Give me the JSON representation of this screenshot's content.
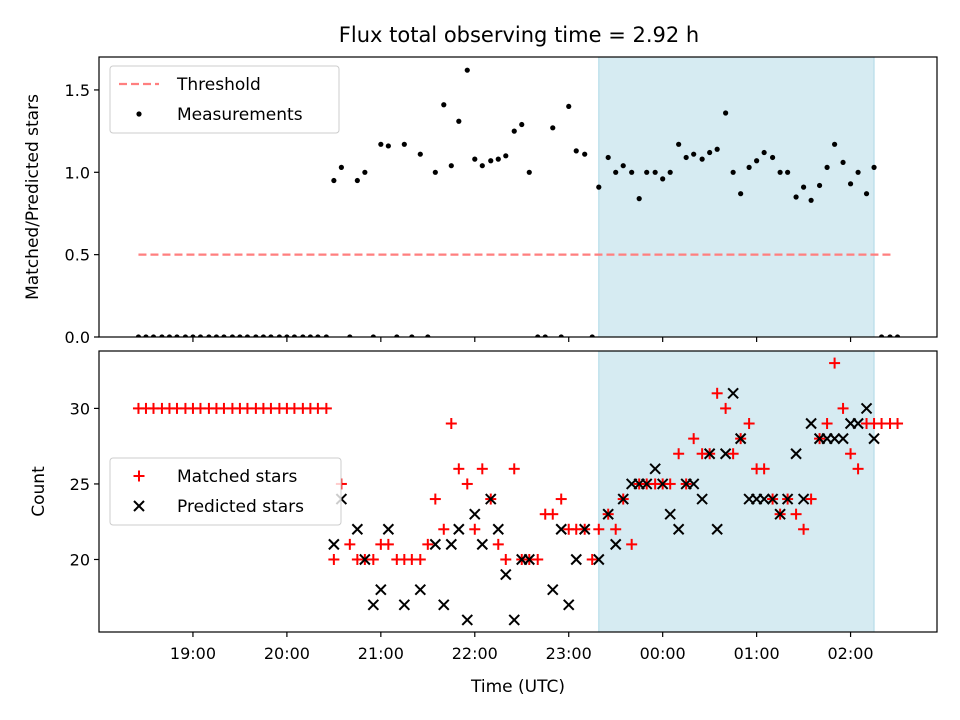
{
  "title": "Flux total observing time = 2.92 h",
  "chart_data": [
    {
      "type": "line+scatter",
      "ylabel": "Matched/Predicted stars",
      "x_units": "hours (UTC, continuing past midnight)",
      "xlim": [
        18.0,
        26.92
      ],
      "ylim": [
        0,
        1.7
      ],
      "yticks": [
        0.0,
        0.5,
        1.0,
        1.5
      ],
      "ytick_labels": [
        "0.0",
        "0.5",
        "1.0",
        "1.5"
      ],
      "observing_window": [
        23.32,
        26.25
      ],
      "legend_position": "upper-left",
      "series": [
        {
          "name": "Threshold",
          "kind": "dashed-line",
          "color": "#ff7f7f",
          "x": [
            18.42,
            26.46
          ],
          "y": [
            0.5,
            0.5
          ]
        },
        {
          "name": "Measurements",
          "kind": "scatter-dots",
          "color": "#000000",
          "x": [
            18.42,
            18.5,
            18.58,
            18.67,
            18.75,
            18.83,
            18.92,
            19.0,
            19.08,
            19.17,
            19.25,
            19.33,
            19.42,
            19.5,
            19.58,
            19.67,
            19.75,
            19.83,
            19.92,
            20.0,
            20.08,
            20.17,
            20.25,
            20.33,
            20.42,
            20.5,
            20.58,
            20.67,
            20.75,
            20.83,
            20.92,
            21.0,
            21.08,
            21.17,
            21.25,
            21.33,
            21.42,
            21.5,
            21.58,
            21.67,
            21.75,
            21.83,
            21.92,
            22.0,
            22.08,
            22.17,
            22.25,
            22.33,
            22.42,
            22.5,
            22.58,
            22.67,
            22.75,
            22.83,
            22.92,
            23.0,
            23.08,
            23.17,
            23.25,
            23.32,
            23.42,
            23.5,
            23.58,
            23.67,
            23.75,
            23.83,
            23.92,
            24.0,
            24.08,
            24.17,
            24.25,
            24.33,
            24.42,
            24.5,
            24.58,
            24.67,
            24.75,
            24.83,
            24.92,
            25.0,
            25.08,
            25.17,
            25.25,
            25.33,
            25.42,
            25.5,
            25.58,
            25.67,
            25.75,
            25.83,
            25.92,
            26.0,
            26.08,
            26.17,
            26.25,
            26.33,
            26.42,
            26.5
          ],
          "y": [
            0,
            0,
            0,
            0,
            0,
            0,
            0,
            0,
            0,
            0,
            0,
            0,
            0,
            0,
            0,
            0,
            0,
            0,
            0,
            0,
            0,
            0,
            0,
            0,
            0,
            0.95,
            1.03,
            0,
            0.95,
            1.0,
            0,
            1.17,
            1.16,
            0,
            1.17,
            0,
            1.11,
            0,
            1.0,
            1.41,
            1.04,
            1.31,
            1.62,
            1.08,
            1.04,
            1.07,
            1.08,
            1.1,
            1.25,
            1.29,
            1.0,
            0,
            0,
            1.27,
            0,
            1.4,
            1.13,
            1.11,
            0,
            0.91,
            1.09,
            1.0,
            1.04,
            1.0,
            0.84,
            1.0,
            1.0,
            0.96,
            1.0,
            1.17,
            1.09,
            1.11,
            1.08,
            1.12,
            1.14,
            1.36,
            1.0,
            0.87,
            1.03,
            1.07,
            1.12,
            1.09,
            1.0,
            1.0,
            0.85,
            0.91,
            0.83,
            0.92,
            1.03,
            1.17,
            1.06,
            0.93,
            1.0,
            0.87,
            1.03,
            0,
            0,
            0
          ]
        }
      ]
    },
    {
      "type": "scatter",
      "xlabel": "Time (UTC)",
      "ylabel": "Count",
      "x_units": "hours (UTC, continuing past midnight)",
      "xlim": [
        18.0,
        26.92
      ],
      "ylim": [
        15.2,
        33.8
      ],
      "yticks": [
        20,
        25,
        30
      ],
      "ytick_labels": [
        "20",
        "25",
        "30"
      ],
      "xticks": [
        19,
        20,
        21,
        22,
        23,
        24,
        25,
        26
      ],
      "xtick_labels": [
        "19:00",
        "20:00",
        "21:00",
        "22:00",
        "23:00",
        "00:00",
        "01:00",
        "02:00"
      ],
      "observing_window": [
        23.32,
        26.25
      ],
      "legend_position": "center-left",
      "series": [
        {
          "name": "Matched stars",
          "marker": "+",
          "color": "#ff0000",
          "x": [
            18.42,
            18.5,
            18.58,
            18.67,
            18.75,
            18.83,
            18.92,
            19.0,
            19.08,
            19.17,
            19.25,
            19.33,
            19.42,
            19.5,
            19.58,
            19.67,
            19.75,
            19.83,
            19.92,
            20.0,
            20.08,
            20.17,
            20.25,
            20.33,
            20.42,
            20.5,
            20.58,
            20.67,
            20.75,
            20.83,
            20.92,
            21.0,
            21.08,
            21.17,
            21.25,
            21.33,
            21.42,
            21.5,
            21.58,
            21.67,
            21.75,
            21.83,
            21.92,
            22.0,
            22.08,
            22.17,
            22.25,
            22.33,
            22.42,
            22.5,
            22.58,
            22.67,
            22.75,
            22.83,
            22.92,
            23.0,
            23.08,
            23.17,
            23.25,
            23.32,
            23.42,
            23.5,
            23.58,
            23.67,
            23.75,
            23.83,
            23.92,
            24.0,
            24.08,
            24.17,
            24.25,
            24.33,
            24.42,
            24.5,
            24.58,
            24.67,
            24.75,
            24.83,
            24.92,
            25.0,
            25.08,
            25.17,
            25.25,
            25.33,
            25.42,
            25.5,
            25.58,
            25.67,
            25.75,
            25.83,
            25.92,
            26.0,
            26.08,
            26.17,
            26.25,
            26.33,
            26.42,
            26.5
          ],
          "y": [
            30,
            30,
            30,
            30,
            30,
            30,
            30,
            30,
            30,
            30,
            30,
            30,
            30,
            30,
            30,
            30,
            30,
            30,
            30,
            30,
            30,
            30,
            30,
            30,
            30,
            20,
            25,
            21,
            20,
            20,
            20,
            21,
            21,
            20,
            20,
            20,
            20,
            21,
            24,
            22,
            29,
            26,
            25,
            22,
            26,
            24,
            21,
            20,
            26,
            20,
            20,
            20,
            23,
            23,
            24,
            22,
            22,
            22,
            20,
            22,
            23,
            22,
            24,
            21,
            25,
            25,
            25,
            25,
            25,
            27,
            25,
            28,
            27,
            27,
            31,
            30,
            27,
            28,
            29,
            26,
            26,
            24,
            23,
            24,
            23,
            22,
            24,
            28,
            29,
            33,
            30,
            27,
            26,
            29,
            29,
            29,
            29,
            29
          ]
        },
        {
          "name": "Predicted stars",
          "marker": "x",
          "color": "#000000",
          "x": [
            20.5,
            20.58,
            20.75,
            20.83,
            20.92,
            21.0,
            21.08,
            21.25,
            21.42,
            21.58,
            21.67,
            21.75,
            21.83,
            21.92,
            22.0,
            22.08,
            22.17,
            22.25,
            22.33,
            22.42,
            22.5,
            22.58,
            22.83,
            22.92,
            23.0,
            23.08,
            23.17,
            23.32,
            23.42,
            23.5,
            23.58,
            23.67,
            23.75,
            23.83,
            23.92,
            24.0,
            24.08,
            24.17,
            24.25,
            24.33,
            24.42,
            24.5,
            24.58,
            24.67,
            24.75,
            24.83,
            24.92,
            25.0,
            25.08,
            25.17,
            25.25,
            25.33,
            25.42,
            25.5,
            25.58,
            25.67,
            25.75,
            25.83,
            25.92,
            26.0,
            26.08,
            26.17,
            26.25
          ],
          "y": [
            21,
            24,
            22,
            20,
            17,
            18,
            22,
            17,
            18,
            21,
            17,
            21,
            22,
            16,
            23,
            21,
            24,
            22,
            19,
            16,
            20,
            20,
            18,
            22,
            17,
            20,
            22,
            20,
            23,
            21,
            24,
            25,
            25,
            25,
            26,
            25,
            23,
            22,
            25,
            25,
            24,
            27,
            22,
            27,
            31,
            28,
            24,
            24,
            24,
            24,
            23,
            24,
            27,
            24,
            29,
            28,
            28,
            28,
            28,
            29,
            29,
            30,
            28
          ]
        }
      ]
    }
  ]
}
